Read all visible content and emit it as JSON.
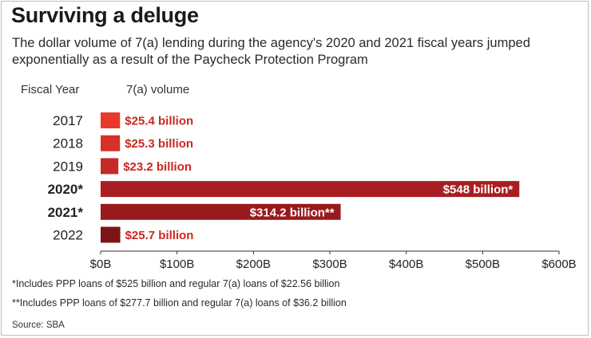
{
  "title": "Surviving a deluge",
  "subtitle": "The dollar volume of 7(a) lending during the agency's 2020 and 2021 fiscal years jumped exponentially as a result of the Paycheck Protection Program",
  "column_headers": {
    "year": "Fiscal Year",
    "volume": "7(a) volume"
  },
  "footnotes": [
    "*Includes PPP loans of $525 billion and regular 7(a) loans of $22.56 billion",
    "**Includes PPP loans of $277.7 billion and regular 7(a) loans of $36.2 billion"
  ],
  "source": "Source: SBA",
  "chart_data": {
    "type": "bar",
    "orientation": "horizontal",
    "xlim": [
      0,
      600
    ],
    "xticks": [
      0,
      100,
      200,
      300,
      400,
      500,
      600
    ],
    "xtick_labels": [
      "$0B",
      "$100B",
      "$200B",
      "$300B",
      "$400B",
      "$500B",
      "$600B"
    ],
    "bars": [
      {
        "category": "2017",
        "value": 25.4,
        "label": "$25.4 billion",
        "color": "#e8382b",
        "bold": false
      },
      {
        "category": "2018",
        "value": 25.3,
        "label": "$25.3 billion",
        "color": "#d6302a",
        "bold": false
      },
      {
        "category": "2019",
        "value": 23.2,
        "label": "$23.2 billion",
        "color": "#c42a28",
        "bold": false
      },
      {
        "category": "2020*",
        "value": 548,
        "label": "$548 billion*",
        "color": "#a81e22",
        "bold": true
      },
      {
        "category": "2021*",
        "value": 314.2,
        "label": "$314.2 billion**",
        "color": "#98191e",
        "bold": true
      },
      {
        "category": "2022",
        "value": 25.7,
        "label": "$25.7 billion",
        "color": "#7d1418",
        "bold": false
      }
    ],
    "label_color_outside": "#c8281f",
    "label_color_inside": "#ffffff"
  }
}
